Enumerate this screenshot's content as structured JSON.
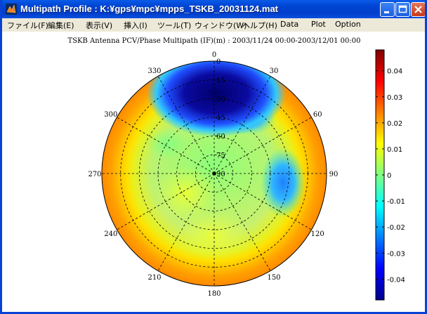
{
  "window": {
    "title": "Multipath Profile : K:¥gps¥mpc¥mpps_TSKB_20031124.mat"
  },
  "menu": {
    "items": [
      {
        "name": "menu-file",
        "label": "ファイル(F)"
      },
      {
        "name": "menu-edit",
        "label": "編集(E)"
      },
      {
        "name": "menu-view",
        "label": "表示(V)"
      },
      {
        "name": "menu-insert",
        "label": "挿入(I)"
      },
      {
        "name": "menu-tools",
        "label": "ツール(T)"
      },
      {
        "name": "menu-window",
        "label": "ウィンドウ(W)"
      },
      {
        "name": "menu-help",
        "label": "ヘルプ(H)"
      },
      {
        "name": "menu-data",
        "label": "Data"
      },
      {
        "name": "menu-plot",
        "label": "Plot"
      },
      {
        "name": "menu-option",
        "label": "Option"
      }
    ]
  },
  "chart_data": {
    "type": "heatmap",
    "projection": "polar-skyplot",
    "title": "TSKB Antenna PCV/Phase Multipath (IF)(m) : 2003/11/24 00:00-2003/12/01 00:00",
    "azimuth_labels": [
      "0",
      "30",
      "60",
      "90",
      "120",
      "150",
      "180",
      "210",
      "240",
      "270",
      "300",
      "330"
    ],
    "elevation_labels": [
      "0",
      "15",
      "30",
      "45",
      "60",
      "75",
      "90"
    ],
    "colorbar": {
      "ticks": [
        "0.04",
        "0.03",
        "0.02",
        "0.01",
        "0",
        "-0.01",
        "-0.02",
        "-0.03",
        "-0.04"
      ],
      "range": [
        -0.048,
        0.048
      ],
      "colormap": "jet"
    },
    "regions": [
      {
        "name": "outer-ring-high",
        "elevation_range": [
          0,
          5
        ],
        "value": 0.026
      },
      {
        "name": "ring-orange",
        "elevation_range": [
          5,
          10
        ],
        "value": 0.02
      },
      {
        "name": "ring-yellow",
        "elevation_range": [
          10,
          18
        ],
        "value": 0.01
      },
      {
        "name": "north-negative-lobe",
        "azimuth_center": 5,
        "elevation_center": 30,
        "value": -0.045
      },
      {
        "name": "east-negative-spot",
        "azimuth_center": 88,
        "elevation_center": 45,
        "value": -0.018
      },
      {
        "name": "center-region",
        "elevation_range": [
          45,
          90
        ],
        "value": 0.002
      }
    ],
    "colors": {
      "ring1": "#ff8c00",
      "ring2": "#ffb400",
      "ring3": "#f2f000",
      "green": "#80ff7a",
      "cyan": "#30ffd0",
      "blue": "#0a0aa8",
      "darkblue": "#00007a"
    }
  }
}
